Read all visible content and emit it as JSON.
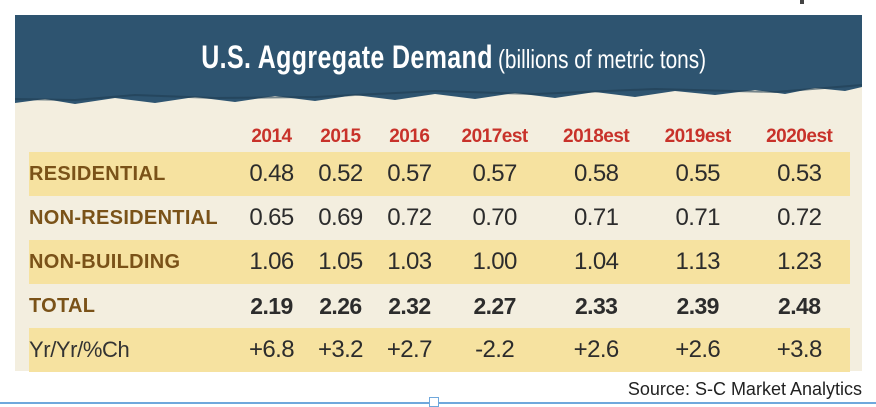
{
  "title": {
    "main": "U.S. Aggregate Demand",
    "sub": "(billions of metric tons)"
  },
  "table": {
    "columns": [
      "2014",
      "2015",
      "2016",
      "2017est",
      "2018est",
      "2019est",
      "2020est"
    ],
    "rows": [
      {
        "label": "RESIDENTIAL",
        "values": [
          "0.48",
          "0.52",
          "0.57",
          "0.57",
          "0.58",
          "0.55",
          "0.53"
        ]
      },
      {
        "label": "NON-RESIDENTIAL",
        "values": [
          "0.65",
          "0.69",
          "0.72",
          "0.70",
          "0.71",
          "0.71",
          "0.72"
        ]
      },
      {
        "label": "NON-BUILDING",
        "values": [
          "1.06",
          "1.05",
          "1.03",
          "1.00",
          "1.04",
          "1.13",
          "1.23"
        ]
      },
      {
        "label": "TOTAL",
        "values": [
          "2.19",
          "2.26",
          "2.32",
          "2.27",
          "2.33",
          "2.39",
          "2.48"
        ]
      },
      {
        "label": "Yr/Yr/%Ch",
        "values": [
          "+6.8",
          "+3.2",
          "+2.7",
          "-2.2",
          "+2.6",
          "+2.6",
          "+3.8"
        ]
      }
    ]
  },
  "source": "Source: S-C Market Analytics",
  "colors": {
    "banner": "#2e5470",
    "band": "#f6e2a0",
    "panel": "#f3eedf",
    "year_header": "#c8322a",
    "row_label": "#7a5218"
  }
}
